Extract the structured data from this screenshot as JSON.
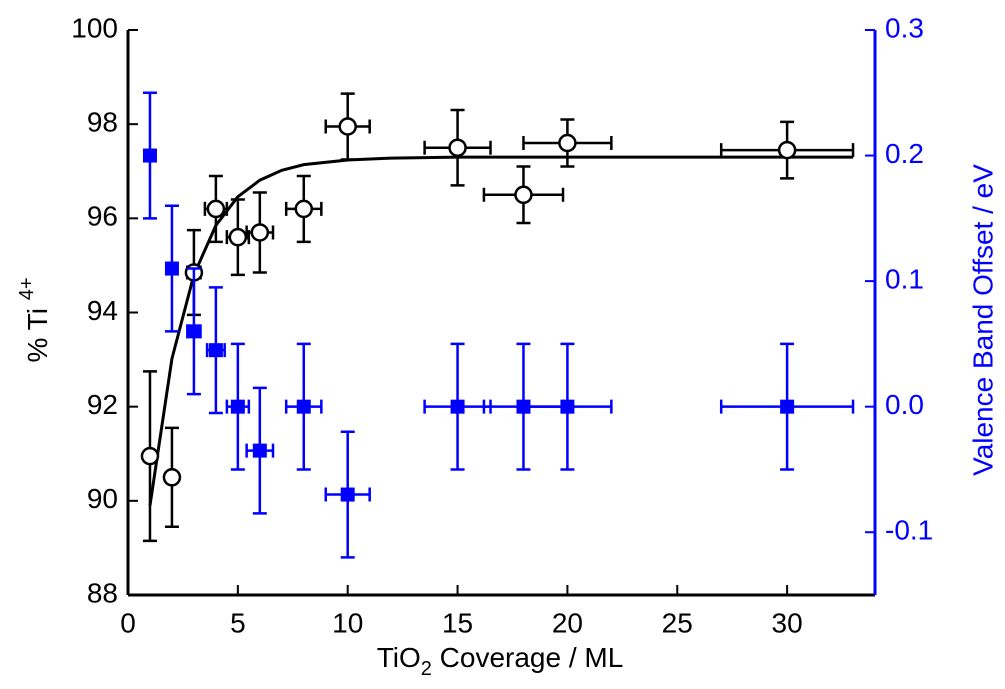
{
  "chart_data": {
    "type": "scatter",
    "xlabel": {
      "main": "TiO",
      "sub": "2",
      "rest": " Coverage / ML"
    },
    "ylabel": {
      "main": "% Ti ",
      "sup": "4+"
    },
    "y2label": "Valence Band Offset / eV",
    "xlim": [
      0,
      34
    ],
    "xticks": [
      0,
      5,
      10,
      15,
      20,
      25,
      30
    ],
    "ylim": [
      88,
      100
    ],
    "yticks": [
      88,
      90,
      92,
      94,
      96,
      98,
      100
    ],
    "y2lim": [
      -0.15,
      0.3
    ],
    "y2ticks": [
      -0.1,
      {
        "value": 0,
        "label": "0.0"
      },
      0.1,
      0.2,
      0.3
    ],
    "y2color": "#0000ff",
    "series": [
      {
        "color": "#000000",
        "marker": "circle",
        "x": [
          1,
          2,
          3,
          4,
          5,
          6,
          8,
          10,
          15,
          18,
          20,
          30
        ],
        "values": [
          90.95,
          90.5,
          94.85,
          96.2,
          95.6,
          95.7,
          96.2,
          97.95,
          97.5,
          96.5,
          97.6,
          97.45
        ],
        "yerr": [
          1.8,
          1.05,
          0.9,
          0.7,
          0.8,
          0.85,
          0.7,
          0.7,
          0.8,
          0.6,
          0.5,
          0.6
        ],
        "xerr": [
          0.1,
          0.2,
          0.3,
          0.5,
          0.5,
          0.6,
          0.8,
          1,
          1.5,
          1.8,
          2,
          3
        ]
      },
      {
        "color": "#0000ff",
        "marker": "square",
        "axis": "y2",
        "x": [
          1,
          2,
          3,
          4,
          5,
          6,
          8,
          10,
          15,
          18,
          20,
          30
        ],
        "values": [
          0.2,
          0.11,
          0.06,
          0.045,
          0,
          -0.035,
          0,
          -0.07,
          0,
          0,
          0,
          0
        ],
        "yerr": [
          0.05,
          0.05,
          0.05,
          0.05,
          0.05,
          0.05,
          0.05,
          0.05,
          0.05,
          0.05,
          0.05,
          0.05
        ],
        "xerr": [
          0.1,
          0.2,
          0.3,
          0.4,
          0.5,
          0.6,
          0.8,
          1,
          1.5,
          1.8,
          2,
          3
        ]
      }
    ],
    "fit": {
      "color": "#000000",
      "x": [
        1,
        2,
        3,
        4,
        5,
        6,
        7,
        8,
        10,
        12,
        15,
        20,
        25,
        30,
        33
      ],
      "values": [
        89.9,
        93.02,
        94.8,
        95.85,
        96.46,
        96.81,
        97.02,
        97.14,
        97.24,
        97.28,
        97.3,
        97.3,
        97.3,
        97.3,
        97.3
      ]
    }
  }
}
